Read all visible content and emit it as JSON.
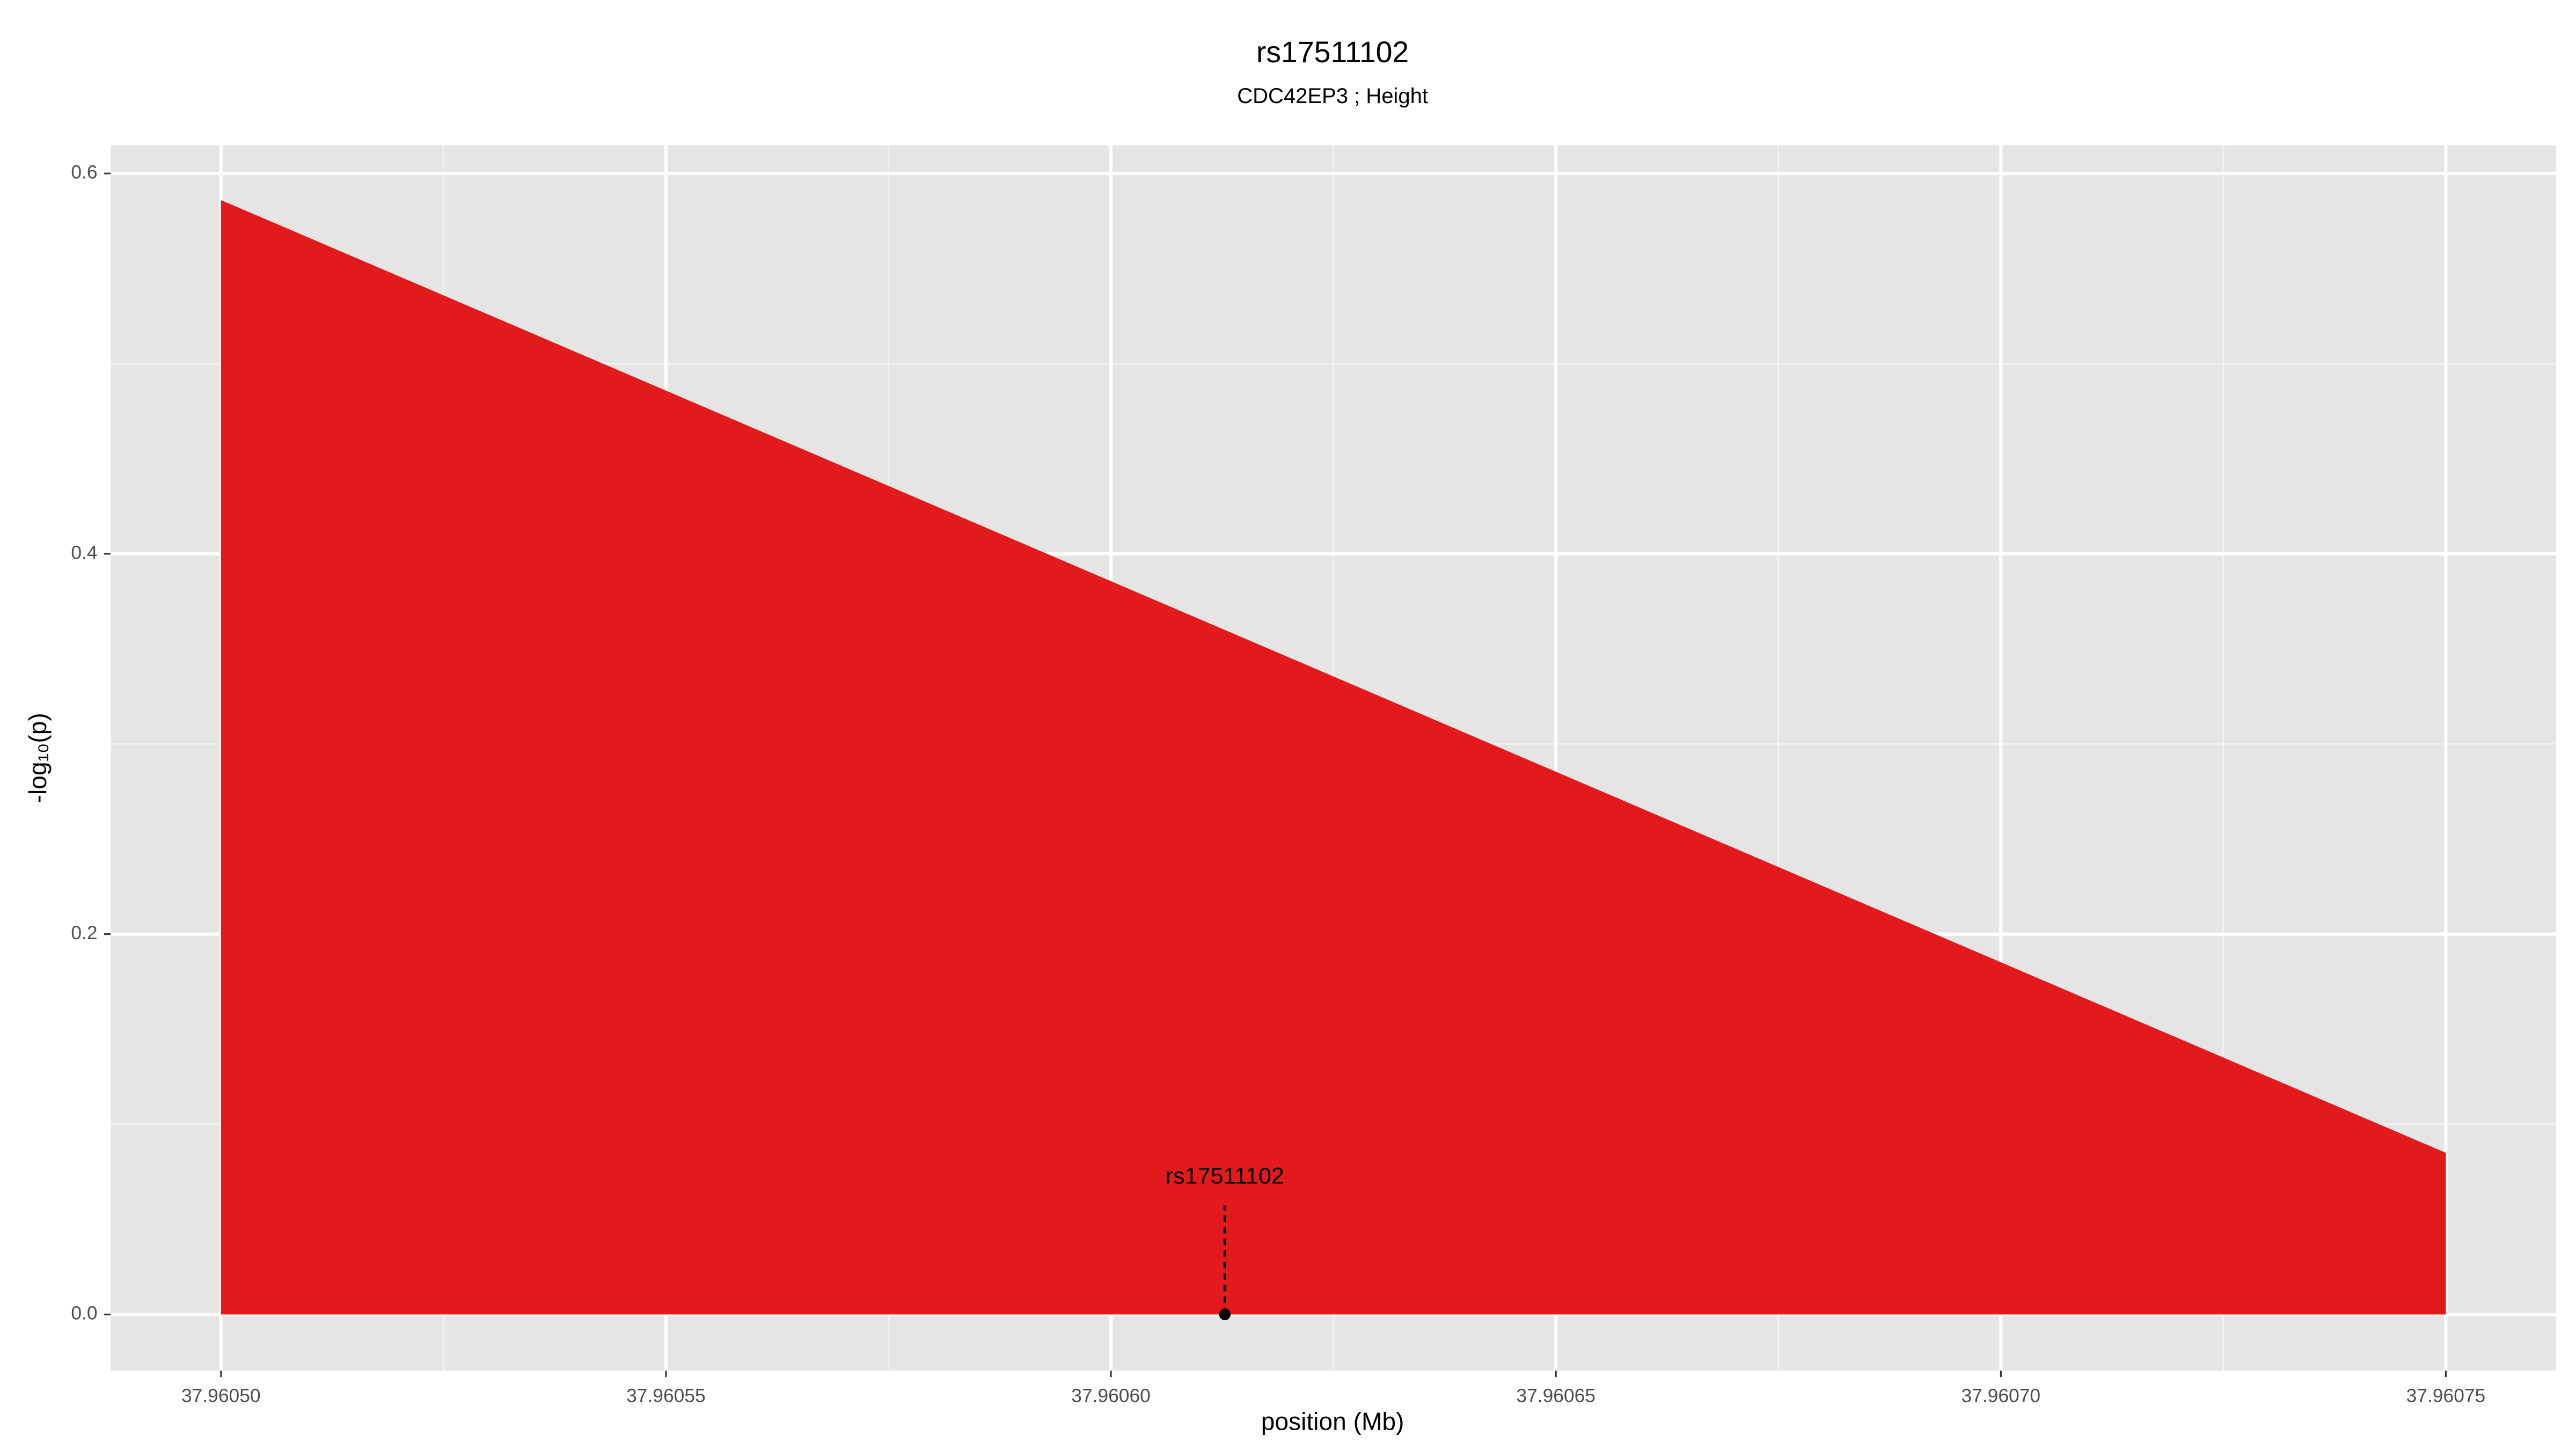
{
  "chart_data": {
    "type": "area",
    "title": "rs17511102",
    "subtitle": "CDC42EP3 ; Height",
    "x_label": "position (Mb)",
    "y_label": "-log₁₀(p)",
    "x": [
      37.9605,
      37.96075
    ],
    "values": [
      0.586,
      0.085
    ],
    "color": "#e31a1c",
    "xlim": [
      37.9604876,
      37.9607624
    ],
    "ylim": [
      -0.0295,
      0.6148
    ],
    "xticks": [
      {
        "value": 37.9605,
        "label": "37.96050"
      },
      {
        "value": 37.96055,
        "label": "37.96055"
      },
      {
        "value": 37.9606,
        "label": "37.96060"
      },
      {
        "value": 37.96065,
        "label": "37.96065"
      },
      {
        "value": 37.9607,
        "label": "37.96070"
      },
      {
        "value": 37.96075,
        "label": "37.96075"
      }
    ],
    "yticks": [
      {
        "value": 0,
        "label": "0.0"
      },
      0.2,
      0.4,
      0.6
    ],
    "grid": true,
    "annotation": {
      "label": "rs17511102",
      "x": 37.9606128,
      "y": 0
    }
  }
}
